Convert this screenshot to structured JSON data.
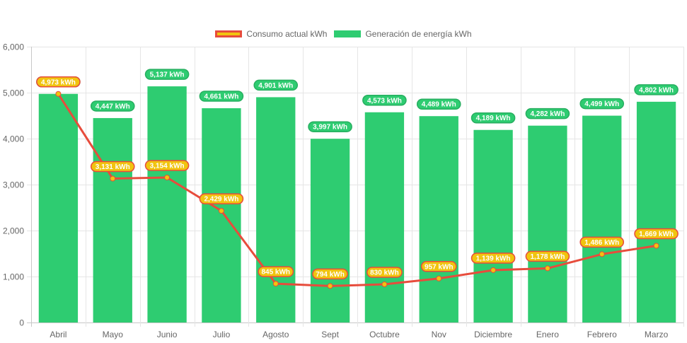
{
  "chart_data": {
    "type": "bar",
    "title": "",
    "xlabel": "",
    "ylabel": "",
    "ylim": [
      0,
      6000
    ],
    "yticks": [
      0,
      1000,
      2000,
      3000,
      4000,
      5000,
      6000
    ],
    "ytick_labels": [
      "0",
      "1,000",
      "2,000",
      "3,000",
      "4,000",
      "5,000",
      "6,000"
    ],
    "grid": true,
    "legend_position": "top-center",
    "categories": [
      "Abril",
      "Mayo",
      "Junio",
      "Julio",
      "Agosto",
      "Sept",
      "Octubre",
      "Nov",
      "Diciembre",
      "Enero",
      "Febrero",
      "Marzo"
    ],
    "series": [
      {
        "name": "Consumo actual kWh",
        "type": "line",
        "color": "#e74c3c",
        "fill": "#f1c40f",
        "values": [
          4973,
          3131,
          3154,
          2429,
          845,
          794,
          830,
          957,
          1139,
          1178,
          1486,
          1669
        ],
        "labels": [
          "4,973 kWh",
          "3,131 kWh",
          "3,154 kWh",
          "2,429 kWh",
          "845 kWh",
          "794 kWh",
          "830 kWh",
          "957 kWh",
          "1,139 kWh",
          "1,178 kWh",
          "1,486 kWh",
          "1,669 kWh"
        ]
      },
      {
        "name": "Generación de energía kWh",
        "type": "bar",
        "color": "#2ecc71",
        "values": [
          4973,
          4447,
          5137,
          4661,
          4901,
          3997,
          4573,
          4489,
          4189,
          4282,
          4499,
          4802
        ],
        "labels": [
          "4,973 kWh",
          "4,447 kWh",
          "5,137 kWh",
          "4,661 kWh",
          "4,901 kWh",
          "3,997 kWh",
          "4,573 kWh",
          "4,489 kWh",
          "4,189 kWh",
          "4,282 kWh",
          "4,499 kWh",
          "4,802 kWh"
        ]
      }
    ]
  },
  "legend": [
    {
      "label": "Consumo actual kWh",
      "fill": "#f1c40f",
      "border": "#e74c3c"
    },
    {
      "label": "Generación de energía kWh",
      "fill": "#2ecc71",
      "border": "#2ecc71"
    }
  ]
}
